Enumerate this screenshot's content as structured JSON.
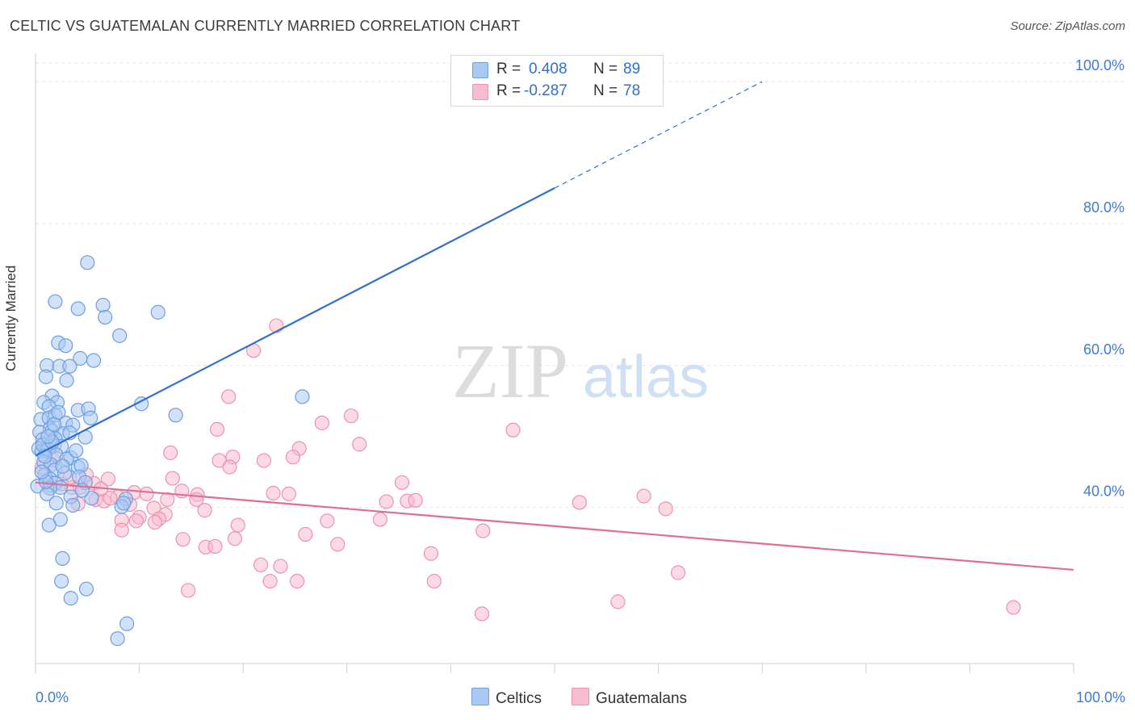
{
  "header": {
    "title": "CELTIC VS GUATEMALAN CURRENTLY MARRIED CORRELATION CHART",
    "source": "Source: ZipAtlas.com"
  },
  "legend": {
    "celtic": {
      "r_label": "R =",
      "r_value": "0.408",
      "n_label": "N =",
      "n_value": "89"
    },
    "guatemalan": {
      "r_label": "R =",
      "r_value": "-0.287",
      "n_label": "N =",
      "n_value": "78"
    }
  },
  "watermark": {
    "zip": "ZIP",
    "atlas": "atlas"
  },
  "colors": {
    "celtic_fill": "#a9c8f2",
    "celtic_stroke": "#6d9fe0",
    "celtic_line": "#2f6fce",
    "guatemalan_fill": "#f7bccd",
    "guatemalan_stroke": "#eb93ae",
    "guatemalan_line": "#e06d98",
    "axis_label": "#3d7bd6",
    "grid": "#e3e3e3"
  },
  "chart_data": {
    "type": "scatter",
    "title": "CELTIC VS GUATEMALAN CURRENTLY MARRIED CORRELATION CHART",
    "xlabel": "",
    "ylabel": "Currently Married",
    "xlim": [
      0,
      100
    ],
    "ylim": [
      18,
      104
    ],
    "x_tick_labels": [
      {
        "value": 0,
        "label": "0.0%"
      },
      {
        "value": 100,
        "label": "100.0%"
      }
    ],
    "y_tick_labels": [
      {
        "value": 40,
        "label": "40.0%"
      },
      {
        "value": 60,
        "label": "60.0%"
      },
      {
        "value": 80,
        "label": "80.0%"
      },
      {
        "value": 100,
        "label": "100.0%"
      }
    ],
    "legend_entries": [
      "Celtics",
      "Guatemalans"
    ],
    "series": [
      {
        "name": "Celtics",
        "r": 0.408,
        "n": 89,
        "trend": {
          "x0": 0,
          "y0": 47.3,
          "x1": 50,
          "y1": 85.0,
          "dashed_to_x": 70,
          "dashed_to_y": 100.0
        },
        "points": [
          [
            5.0,
            74.5
          ],
          [
            1.9,
            69
          ],
          [
            4.1,
            68
          ],
          [
            6.5,
            68.5
          ],
          [
            11.8,
            67.5
          ],
          [
            6.7,
            66.8
          ],
          [
            8.1,
            64.2
          ],
          [
            2.2,
            63.2
          ],
          [
            2.9,
            62.8
          ],
          [
            4.3,
            61
          ],
          [
            5.6,
            60.7
          ],
          [
            1.1,
            60
          ],
          [
            2.3,
            59.9
          ],
          [
            3.3,
            59.9
          ],
          [
            1.0,
            58.4
          ],
          [
            3.0,
            57.9
          ],
          [
            1.6,
            55.7
          ],
          [
            10.2,
            54.6
          ],
          [
            2.1,
            54.8
          ],
          [
            0.8,
            54.8
          ],
          [
            1.3,
            54.2
          ],
          [
            4.1,
            53.7
          ],
          [
            5.1,
            53.9
          ],
          [
            13.5,
            53.0
          ],
          [
            0.5,
            52.4
          ],
          [
            1.3,
            52.6
          ],
          [
            1.9,
            53.0
          ],
          [
            2.9,
            51.9
          ],
          [
            3.6,
            51.6
          ],
          [
            1.4,
            51.1
          ],
          [
            0.4,
            50.6
          ],
          [
            1.6,
            50.8
          ],
          [
            2.6,
            50.4
          ],
          [
            3.3,
            50.5
          ],
          [
            1.9,
            49.7
          ],
          [
            0.7,
            49.6
          ],
          [
            0.3,
            48.3
          ],
          [
            1.0,
            48.0
          ],
          [
            1.8,
            48.7
          ],
          [
            2.5,
            48.6
          ],
          [
            0.6,
            47.9
          ],
          [
            1.2,
            48.2
          ],
          [
            2.0,
            47.4
          ],
          [
            3.4,
            47.0
          ],
          [
            4.8,
            49.9
          ],
          [
            5.3,
            52.6
          ],
          [
            0.8,
            46.4
          ],
          [
            1.5,
            46.0
          ],
          [
            4.1,
            45.7
          ],
          [
            4.4,
            45.9
          ],
          [
            1.9,
            45.3
          ],
          [
            0.9,
            44.6
          ],
          [
            1.4,
            44.0
          ],
          [
            4.2,
            44.3
          ],
          [
            0.2,
            43.0
          ],
          [
            1.9,
            43.4
          ],
          [
            2.4,
            42.8
          ],
          [
            4.8,
            43.5
          ],
          [
            1.4,
            42.7
          ],
          [
            3.4,
            41.5
          ],
          [
            5.4,
            41.3
          ],
          [
            8.7,
            41.2
          ],
          [
            1.1,
            41.9
          ],
          [
            2.0,
            40.6
          ],
          [
            3.6,
            40.3
          ],
          [
            8.3,
            40.1
          ],
          [
            8.5,
            40.6
          ],
          [
            2.4,
            38.3
          ],
          [
            1.3,
            37.5
          ],
          [
            2.6,
            32.8
          ],
          [
            2.5,
            29.6
          ],
          [
            4.9,
            28.5
          ],
          [
            3.4,
            27.2
          ],
          [
            8.8,
            23.6
          ],
          [
            7.9,
            21.5
          ],
          [
            25.7,
            55.6
          ],
          [
            0.7,
            48.8
          ],
          [
            1.6,
            49.2
          ],
          [
            2.8,
            44.8
          ],
          [
            3.0,
            46.8
          ],
          [
            1.0,
            43.6
          ],
          [
            1.8,
            51.7
          ],
          [
            2.2,
            53.4
          ],
          [
            0.6,
            45.0
          ],
          [
            3.9,
            48.0
          ],
          [
            2.6,
            45.8
          ],
          [
            1.2,
            50.0
          ],
          [
            4.5,
            42.4
          ],
          [
            0.9,
            47.2
          ]
        ]
      },
      {
        "name": "Guatemalans",
        "r": -0.287,
        "n": 78,
        "trend": {
          "x0": 0,
          "y0": 43.5,
          "x1": 100,
          "y1": 31.2
        },
        "points": [
          [
            23.2,
            65.6
          ],
          [
            21.0,
            62.1
          ],
          [
            18.6,
            55.6
          ],
          [
            30.4,
            52.9
          ],
          [
            27.6,
            51.9
          ],
          [
            46.0,
            50.9
          ],
          [
            17.5,
            51.0
          ],
          [
            31.2,
            48.9
          ],
          [
            25.4,
            48.3
          ],
          [
            13.0,
            47.7
          ],
          [
            24.8,
            47.1
          ],
          [
            19.0,
            47.1
          ],
          [
            17.7,
            46.6
          ],
          [
            22.0,
            46.6
          ],
          [
            18.7,
            45.7
          ],
          [
            0.6,
            45.6
          ],
          [
            1.7,
            46.7
          ],
          [
            7.0,
            44.0
          ],
          [
            13.2,
            44.1
          ],
          [
            35.3,
            43.5
          ],
          [
            5.6,
            43.4
          ],
          [
            3.5,
            42.8
          ],
          [
            1.4,
            43.1
          ],
          [
            4.3,
            42.8
          ],
          [
            14.1,
            42.3
          ],
          [
            9.5,
            42.1
          ],
          [
            22.9,
            42.0
          ],
          [
            24.4,
            41.9
          ],
          [
            15.6,
            41.8
          ],
          [
            7.9,
            41.5
          ],
          [
            12.7,
            41.1
          ],
          [
            5.8,
            41.1
          ],
          [
            6.6,
            40.9
          ],
          [
            15.5,
            41.1
          ],
          [
            4.1,
            40.5
          ],
          [
            33.8,
            40.8
          ],
          [
            35.8,
            40.9
          ],
          [
            36.6,
            41.0
          ],
          [
            52.4,
            40.7
          ],
          [
            58.6,
            41.6
          ],
          [
            11.4,
            39.9
          ],
          [
            16.3,
            39.6
          ],
          [
            60.7,
            39.8
          ],
          [
            12.5,
            39.0
          ],
          [
            10.0,
            38.6
          ],
          [
            11.9,
            38.4
          ],
          [
            8.3,
            38.2
          ],
          [
            9.7,
            38.1
          ],
          [
            11.5,
            37.9
          ],
          [
            28.1,
            38.1
          ],
          [
            33.2,
            38.3
          ],
          [
            19.5,
            37.5
          ],
          [
            8.3,
            36.8
          ],
          [
            26.0,
            36.2
          ],
          [
            43.1,
            36.7
          ],
          [
            14.2,
            35.5
          ],
          [
            19.2,
            35.6
          ],
          [
            16.4,
            34.4
          ],
          [
            17.3,
            34.5
          ],
          [
            29.1,
            34.8
          ],
          [
            38.1,
            33.5
          ],
          [
            21.7,
            31.9
          ],
          [
            23.6,
            31.7
          ],
          [
            61.9,
            30.8
          ],
          [
            22.6,
            29.6
          ],
          [
            25.2,
            29.6
          ],
          [
            38.4,
            29.6
          ],
          [
            14.7,
            28.3
          ],
          [
            56.1,
            26.7
          ],
          [
            94.2,
            25.9
          ],
          [
            43.0,
            25.0
          ],
          [
            10.7,
            41.9
          ],
          [
            4.9,
            44.6
          ],
          [
            3.3,
            44.2
          ],
          [
            6.3,
            42.6
          ],
          [
            9.1,
            40.4
          ],
          [
            2.5,
            43.3
          ],
          [
            7.2,
            41.3
          ]
        ]
      }
    ]
  },
  "bottom_legend": {
    "celtic_label": "Celtics",
    "guatemalan_label": "Guatemalans"
  }
}
